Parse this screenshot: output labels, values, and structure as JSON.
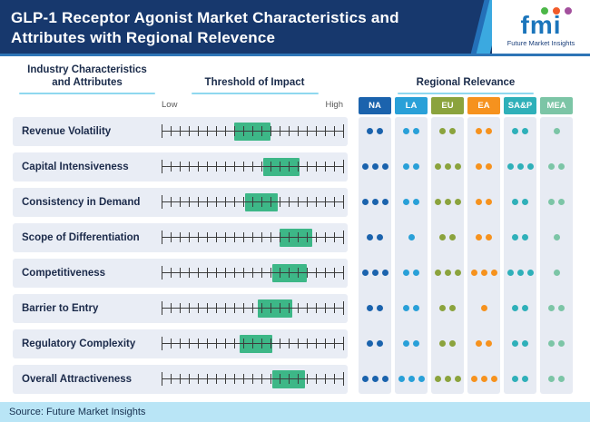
{
  "header": {
    "title_line1": "GLP-1 Receptor Agonist Market Characteristics and",
    "title_line2": "Attributes with Regional Relevence",
    "logo": {
      "word": "fmi",
      "tagline": "Future Market Insights",
      "dot_colors": [
        "#4cb748",
        "#f15b2a",
        "#a3509d"
      ]
    }
  },
  "sections": {
    "attributes_header_line1": "Industry Characteristics",
    "attributes_header_line2": "and Attributes",
    "impact_header": "Threshold of Impact",
    "regional_header": "Regional Relevance"
  },
  "footer": {
    "source": "Source: Future Market Insights"
  },
  "colors": {
    "header_bg": "#17386d",
    "row_band": "#e9edf5",
    "column_band": "#e7ebf3",
    "impact_box": "#3db787",
    "underline": "#8fd8ef",
    "footer_bg": "#b9e5f6"
  },
  "chart_data": {
    "type": "table",
    "title": "GLP-1 Receptor Agonist Market Characteristics and Attributes with Regional Relevence",
    "impact_scale": {
      "min_label": "Low",
      "max_label": "High",
      "ticks": 21
    },
    "regions": [
      {
        "code": "NA",
        "color": "#1b63ad"
      },
      {
        "code": "LA",
        "color": "#29a0d8"
      },
      {
        "code": "EU",
        "color": "#8ba33d"
      },
      {
        "code": "EA",
        "color": "#f6921e"
      },
      {
        "code": "SA&P",
        "color": "#2fb0b9"
      },
      {
        "code": "MEA",
        "color": "#7cc5a6"
      }
    ],
    "rows": [
      {
        "attribute": "Revenue Volatility",
        "impact_range_pct": [
          40,
          60
        ],
        "regional_relevance_dots": [
          2,
          2,
          2,
          2,
          2,
          1
        ]
      },
      {
        "attribute": "Capital Intensiveness",
        "impact_range_pct": [
          56,
          76
        ],
        "regional_relevance_dots": [
          3,
          2,
          3,
          2,
          3,
          2
        ]
      },
      {
        "attribute": "Consistency in Demand",
        "impact_range_pct": [
          46,
          64
        ],
        "regional_relevance_dots": [
          3,
          2,
          3,
          2,
          2,
          2
        ]
      },
      {
        "attribute": "Scope of Differentiation",
        "impact_range_pct": [
          65,
          83
        ],
        "regional_relevance_dots": [
          2,
          1,
          2,
          2,
          2,
          1
        ]
      },
      {
        "attribute": "Competitiveness",
        "impact_range_pct": [
          61,
          80
        ],
        "regional_relevance_dots": [
          3,
          2,
          3,
          3,
          3,
          1
        ]
      },
      {
        "attribute": "Barrier to Entry",
        "impact_range_pct": [
          53,
          72
        ],
        "regional_relevance_dots": [
          2,
          2,
          2,
          1,
          2,
          2
        ]
      },
      {
        "attribute": "Regulatory Complexity",
        "impact_range_pct": [
          43,
          61
        ],
        "regional_relevance_dots": [
          2,
          2,
          2,
          2,
          2,
          2
        ]
      },
      {
        "attribute": "Overall Attractiveness",
        "impact_range_pct": [
          61,
          79
        ],
        "regional_relevance_dots": [
          3,
          3,
          3,
          3,
          2,
          2
        ]
      }
    ]
  }
}
